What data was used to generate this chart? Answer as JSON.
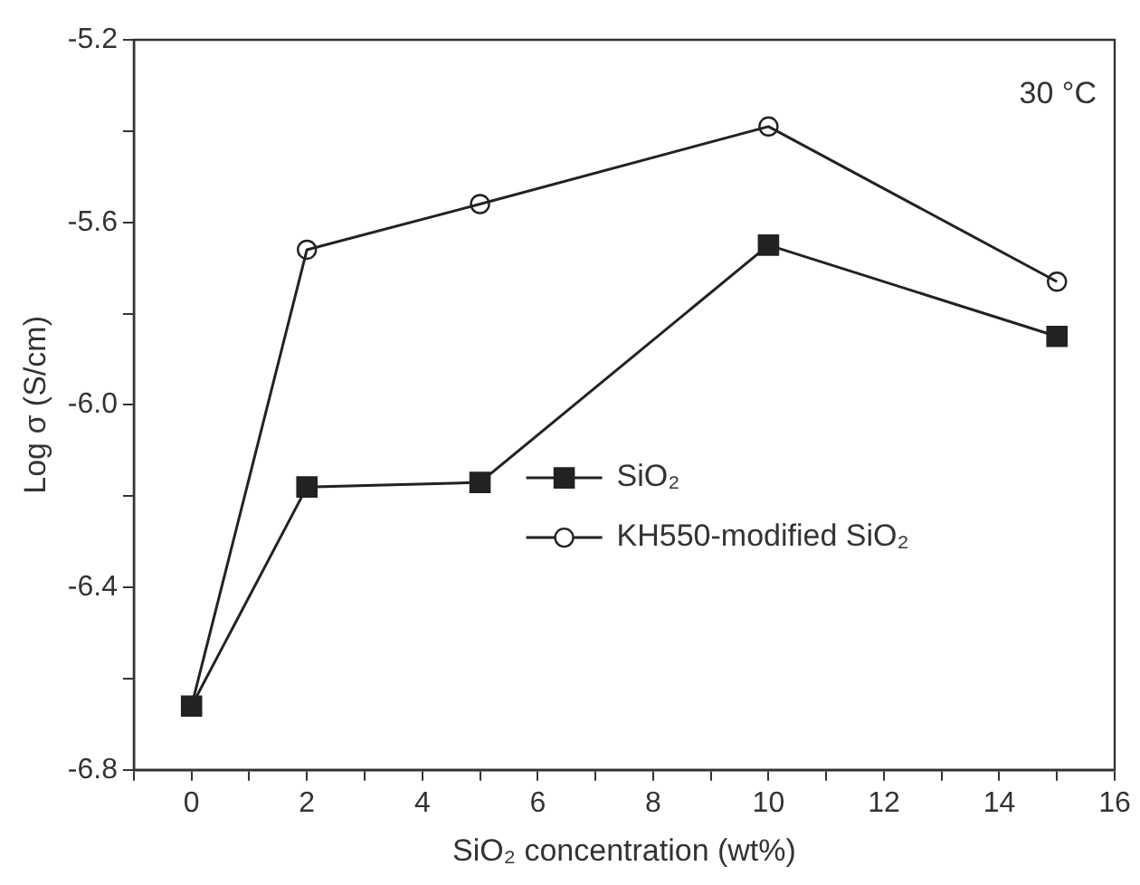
{
  "chart_data": {
    "type": "line",
    "xlabel": "SiO₂ concentration (wt%)",
    "ylabel": "Log σ (S/cm)",
    "x": [
      0,
      2,
      5,
      10,
      15
    ],
    "series": [
      {
        "name": "SiO₂",
        "color": "#222222",
        "marker": "square",
        "values": [
          -6.66,
          -6.18,
          -6.17,
          -5.65,
          -5.85
        ]
      },
      {
        "name": "KH550-modified SiO₂",
        "color": "#222222",
        "marker": "circle",
        "values": [
          -6.66,
          -5.66,
          -5.56,
          -5.39,
          -5.73
        ]
      }
    ],
    "xlim": [
      -1,
      16
    ],
    "xticks": [
      {
        "value": -1,
        "label": null
      },
      0,
      {
        "value": 1,
        "label": null
      },
      2,
      {
        "value": 3,
        "label": null
      },
      4,
      {
        "value": 5,
        "label": null
      },
      6,
      {
        "value": 7,
        "label": null
      },
      8,
      {
        "value": 9,
        "label": null
      },
      10,
      {
        "value": 11,
        "label": null
      },
      12,
      {
        "value": 13,
        "label": null
      },
      14,
      {
        "value": 15,
        "label": null
      },
      16
    ],
    "ylim": [
      -6.8,
      -5.2
    ],
    "yticks": [
      {
        "value": -6.8,
        "label": "-6.8"
      },
      {
        "value": -6.6,
        "label": null
      },
      {
        "value": -6.4,
        "label": "-6.4"
      },
      {
        "value": -6.2,
        "label": null
      },
      {
        "value": -6.0,
        "label": "-6.0"
      },
      {
        "value": -5.8,
        "label": null
      },
      {
        "value": -5.6,
        "label": "-5.6"
      },
      {
        "value": -5.4,
        "label": null
      },
      {
        "value": -5.2,
        "label": "-5.2"
      }
    ],
    "annotations": [
      "30 °C"
    ],
    "legend": "right",
    "grid": false
  }
}
